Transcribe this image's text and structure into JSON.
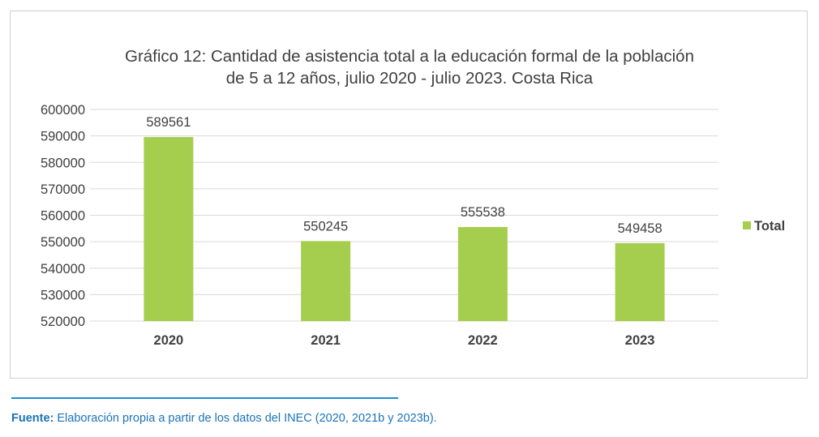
{
  "chart_data": {
    "type": "bar",
    "title_line1": "Gráfico 12: Cantidad de asistencia total a la educación formal de la población",
    "title_line2": "de 5 a 12 años, julio 2020 - julio 2023. Costa Rica",
    "categories": [
      "2020",
      "2021",
      "2022",
      "2023"
    ],
    "series": [
      {
        "name": "Total",
        "values": [
          589561,
          550245,
          555538,
          549458
        ]
      }
    ],
    "data_labels": [
      "589561",
      "550245",
      "555538",
      "549458"
    ],
    "yticks": [
      "520000",
      "530000",
      "540000",
      "550000",
      "560000",
      "570000",
      "580000",
      "590000",
      "600000"
    ],
    "ylim": [
      520000,
      600000
    ],
    "grid": true,
    "legend_position": "right",
    "colors": {
      "bar": "#a6ce4e",
      "grid": "#d9d9d9",
      "text": "#404040"
    }
  },
  "source": {
    "label": "Fuente:",
    "text": " Elaboración propia a partir de los datos del INEC (2020, 2021b y 2023b)."
  }
}
